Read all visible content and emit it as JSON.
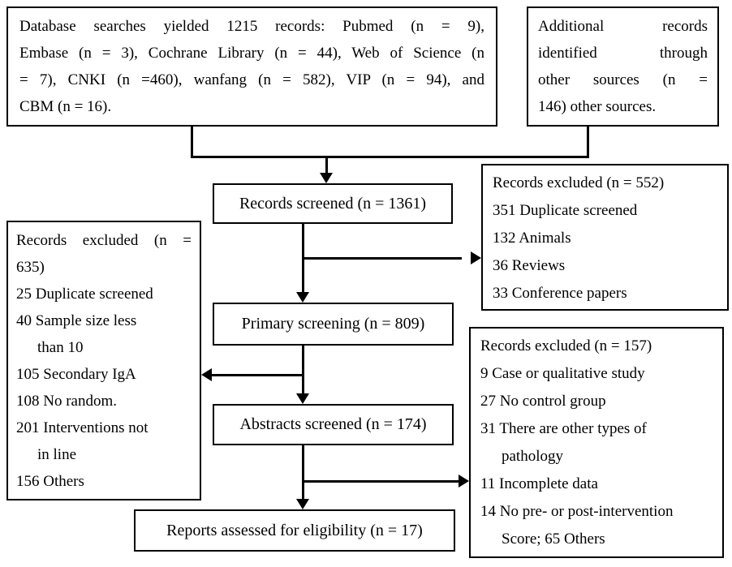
{
  "colors": {
    "line": "#000000",
    "background": "#ffffff",
    "text": "#000000"
  },
  "boxes": {
    "database_searches": {
      "lines": [
        {
          "text": "Database searches yielded 1215 records: Pubmed (n = 9),",
          "justify": true
        },
        {
          "text": "Embase (n = 3), Cochrane Library (n = 44), Web of Science (n",
          "justify": true
        },
        {
          "text": "= 7), CNKI (n =460), wanfang (n = 582), VIP (n = 94), and",
          "justify": true
        },
        {
          "text": "CBM (n = 16)."
        }
      ]
    },
    "additional_records": {
      "lines": [
        {
          "text": "Additional records",
          "justify": true
        },
        {
          "text": "identified through",
          "justify": true
        },
        {
          "text": "other sources (n =",
          "justify": true
        },
        {
          "text": "146) other sources."
        }
      ]
    },
    "records_screened": {
      "label": "Records screened (n = 1361)"
    },
    "records_excluded_552": {
      "lines": [
        {
          "text": "Records excluded (n = 552)"
        },
        {
          "text": "351 Duplicate screened"
        },
        {
          "text": "132 Animals"
        },
        {
          "text": "36 Reviews"
        },
        {
          "text": "33 Conference papers"
        }
      ]
    },
    "records_excluded_635": {
      "lines": [
        {
          "text": "Records excluded (n =",
          "justify": true
        },
        {
          "text": "635)"
        },
        {
          "text": "25 Duplicate screened"
        },
        {
          "text": "40 Sample size less"
        },
        {
          "text": "than 10",
          "indent": true
        },
        {
          "text": "105 Secondary IgA"
        },
        {
          "text": "108 No random."
        },
        {
          "text": "201 Interventions not"
        },
        {
          "text": "in line",
          "indent": true
        },
        {
          "text": "156 Others"
        }
      ]
    },
    "primary_screening": {
      "label": "Primary screening (n = 809)"
    },
    "abstracts_screened": {
      "label": "Abstracts screened (n = 174)"
    },
    "records_excluded_157": {
      "lines": [
        {
          "text": "Records excluded (n = 157)"
        },
        {
          "text": "9 Case or qualitative study"
        },
        {
          "text": "27 No control group"
        },
        {
          "text": "31 There are other types of"
        },
        {
          "text": "pathology",
          "indent": true
        },
        {
          "text": "11 Incomplete data"
        },
        {
          "text": "14 No pre- or post-intervention"
        },
        {
          "text": "Score; 65 Others",
          "indent": true
        }
      ]
    },
    "reports_assessed": {
      "label": "Reports assessed for eligibility (n = 17)"
    }
  }
}
